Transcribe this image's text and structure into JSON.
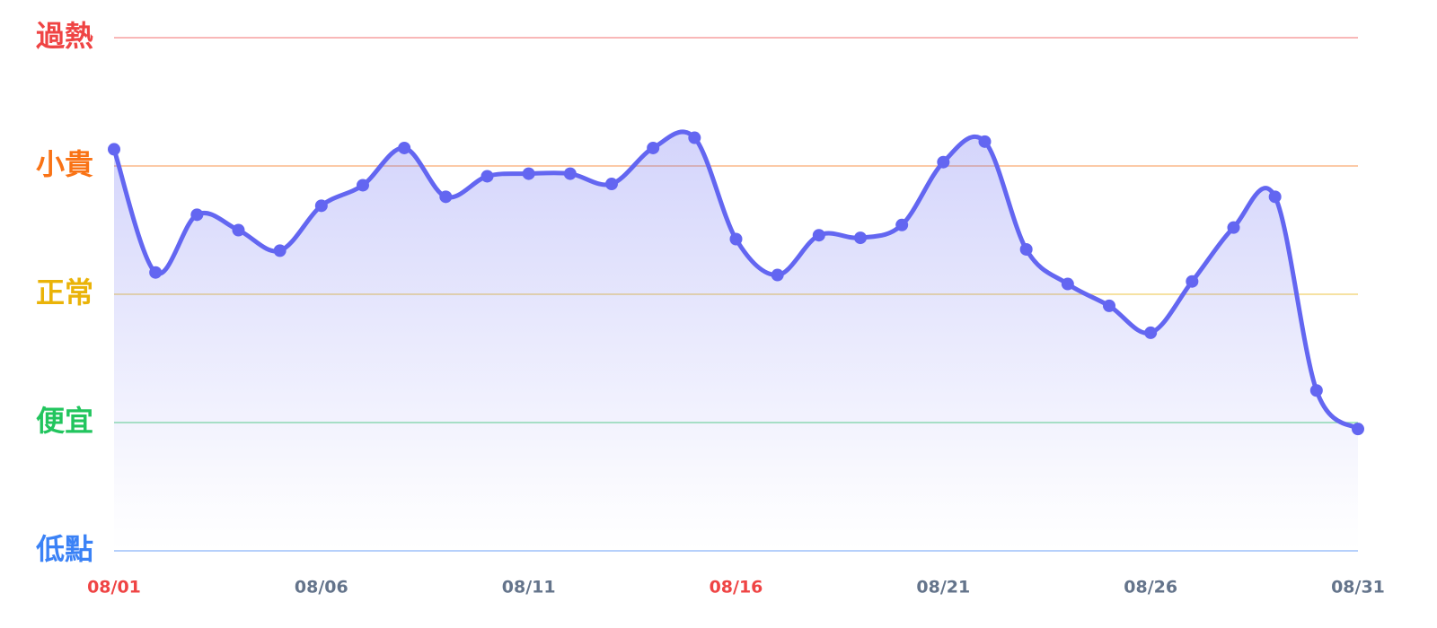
{
  "chart_data": {
    "type": "line",
    "categories": [
      "08/01",
      null,
      null,
      null,
      null,
      "08/06",
      null,
      null,
      null,
      null,
      "08/11",
      null,
      null,
      null,
      null,
      "08/16",
      null,
      null,
      null,
      null,
      "08/21",
      null,
      null,
      null,
      null,
      "08/26",
      null,
      null,
      null,
      null,
      "08/31"
    ],
    "category_colors": [
      "#ef4444",
      null,
      null,
      null,
      null,
      "#64748b",
      null,
      null,
      null,
      null,
      "#64748b",
      null,
      null,
      null,
      null,
      "#ef4444",
      null,
      null,
      null,
      null,
      "#64748b",
      null,
      null,
      null,
      null,
      "#64748b",
      null,
      null,
      null,
      null,
      "#64748b"
    ],
    "series": [
      {
        "color": "#6366f1",
        "values": [
          3.13,
          2.17,
          2.62,
          2.5,
          2.34,
          2.69,
          2.85,
          3.14,
          2.76,
          2.92,
          2.94,
          2.94,
          2.86,
          3.14,
          3.22,
          2.43,
          2.15,
          2.46,
          2.44,
          2.54,
          3.03,
          3.19,
          2.35,
          2.08,
          1.91,
          1.7,
          2.1,
          2.52,
          2.76,
          1.25,
          0.95
        ]
      }
    ],
    "ylim": [
      0,
      4
    ],
    "yticks": [
      {
        "value": 0,
        "label": "低點"
      },
      {
        "value": 1,
        "label": "便宜"
      },
      {
        "value": 2,
        "label": "正常"
      },
      {
        "value": 3,
        "label": "小貴"
      },
      {
        "value": 4,
        "label": "過熱"
      }
    ],
    "ytick_colors": [
      "#3b82f6",
      "#22c55e",
      "#eab308",
      "#f97316",
      "#ef4444"
    ],
    "grid": true,
    "smooth": true,
    "area": true
  }
}
